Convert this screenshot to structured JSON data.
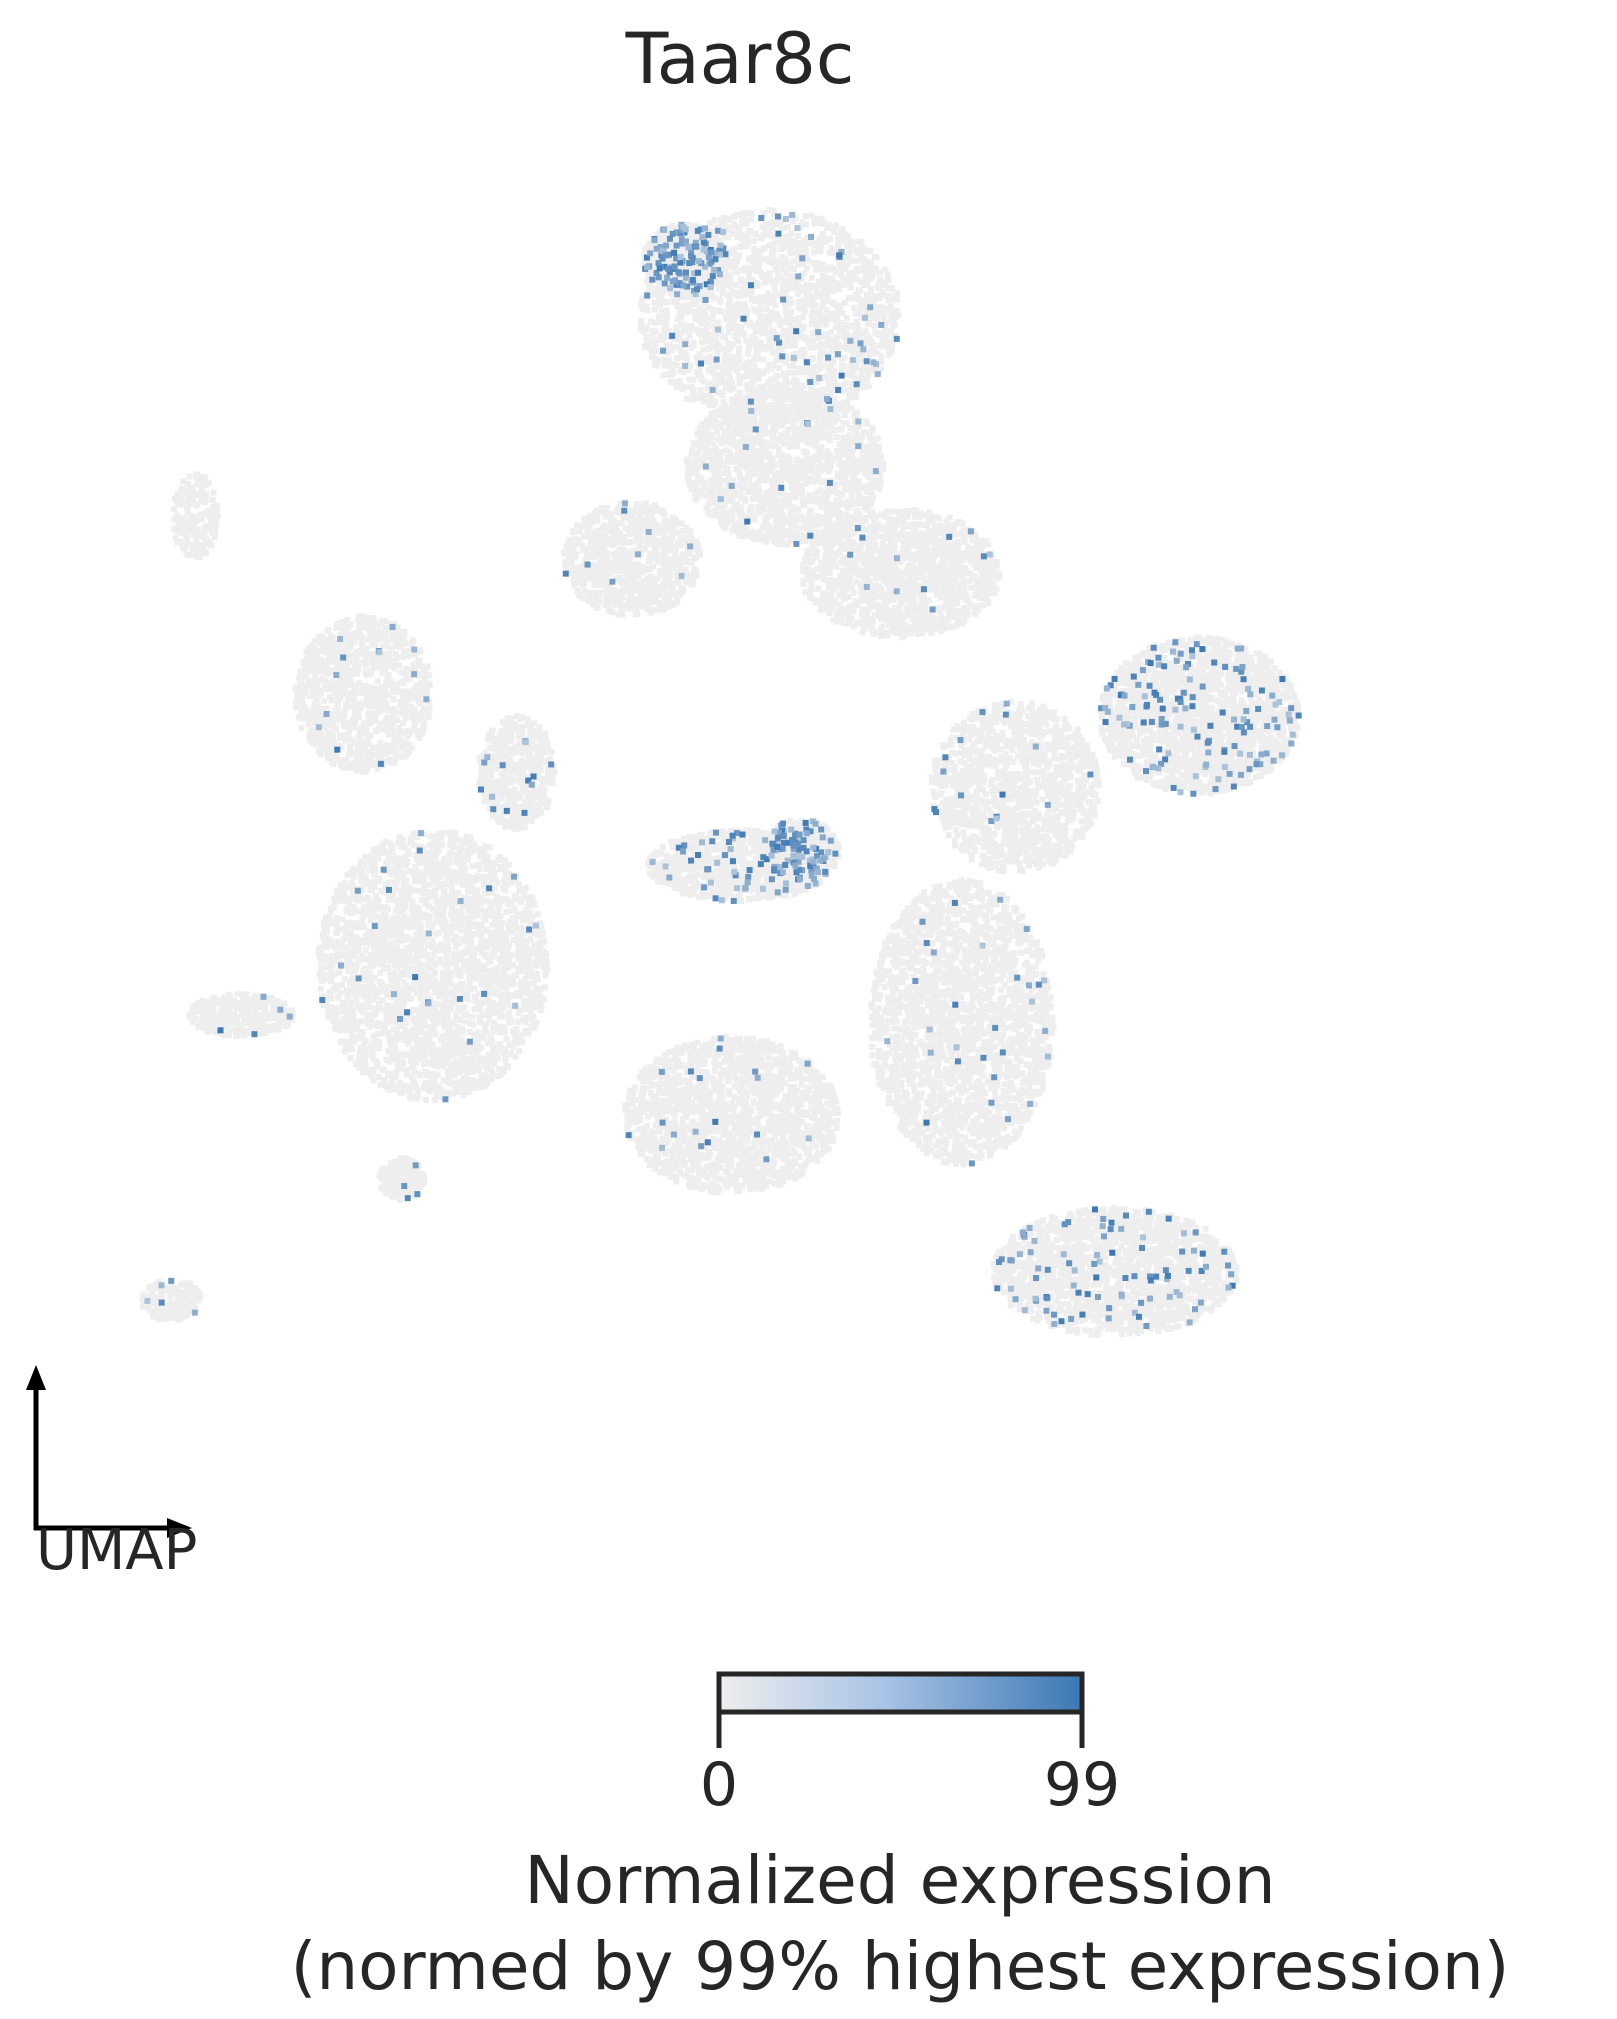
{
  "chart_data": {
    "type": "scatter",
    "title": "Taar8c",
    "embedding_label": "UMAP",
    "colorbar": {
      "min_label": "0",
      "max_label": "99",
      "label_line1": "Normalized expression",
      "label_line2": "(normed by 99% highest expression)",
      "colors": [
        "#eeeeee",
        "#a9c4e6",
        "#3c78b4"
      ]
    },
    "background_color": "#eeeeee",
    "high_color": "#3c78b4",
    "clusters": [
      {
        "name": "top",
        "cx": 0.0,
        "cy": 8.6,
        "rx": 1.7,
        "ry": 1.5,
        "n": 320,
        "expr_frac": 0.09
      },
      {
        "name": "top-hotspot",
        "cx": -1.1,
        "cy": 9.4,
        "rx": 0.55,
        "ry": 0.5,
        "n": 140,
        "expr_frac": 0.45
      },
      {
        "name": "upper-stem",
        "cx": 0.2,
        "cy": 6.5,
        "rx": 1.3,
        "ry": 1.1,
        "n": 240,
        "expr_frac": 0.03
      },
      {
        "name": "upper-right-arm",
        "cx": 1.7,
        "cy": 5.0,
        "rx": 1.3,
        "ry": 0.9,
        "n": 220,
        "expr_frac": 0.04
      },
      {
        "name": "upper-left-arm",
        "cx": -1.8,
        "cy": 5.2,
        "rx": 0.9,
        "ry": 0.8,
        "n": 130,
        "expr_frac": 0.03
      },
      {
        "name": "left-mid",
        "cx": -5.3,
        "cy": 3.3,
        "rx": 0.9,
        "ry": 1.1,
        "n": 160,
        "expr_frac": 0.03
      },
      {
        "name": "left-large",
        "cx": -4.4,
        "cy": -0.5,
        "rx": 1.5,
        "ry": 1.9,
        "n": 430,
        "expr_frac": 0.04
      },
      {
        "name": "left-connector",
        "cx": -3.3,
        "cy": 2.2,
        "rx": 0.5,
        "ry": 0.8,
        "n": 80,
        "expr_frac": 0.08
      },
      {
        "name": "left-tail",
        "cx": -6.9,
        "cy": -1.2,
        "rx": 0.7,
        "ry": 0.3,
        "n": 50,
        "expr_frac": 0.03
      },
      {
        "name": "center-small",
        "cx": -0.4,
        "cy": 0.9,
        "rx": 1.2,
        "ry": 0.5,
        "n": 150,
        "expr_frac": 0.16
      },
      {
        "name": "center-hotspot",
        "cx": 0.4,
        "cy": 1.1,
        "rx": 0.5,
        "ry": 0.45,
        "n": 80,
        "expr_frac": 0.45
      },
      {
        "name": "bottom-center",
        "cx": -0.5,
        "cy": -2.6,
        "rx": 1.4,
        "ry": 1.1,
        "n": 270,
        "expr_frac": 0.04
      },
      {
        "name": "right-lower",
        "cx": 2.5,
        "cy": -1.3,
        "rx": 1.2,
        "ry": 2.0,
        "n": 380,
        "expr_frac": 0.05
      },
      {
        "name": "right-arm",
        "cx": 3.2,
        "cy": 2.0,
        "rx": 1.1,
        "ry": 1.2,
        "n": 200,
        "expr_frac": 0.05
      },
      {
        "name": "right-cluster",
        "cx": 5.6,
        "cy": 3.0,
        "rx": 1.3,
        "ry": 1.1,
        "n": 310,
        "expr_frac": 0.18
      },
      {
        "name": "bottom-right",
        "cx": 4.5,
        "cy": -4.8,
        "rx": 1.6,
        "ry": 0.9,
        "n": 280,
        "expr_frac": 0.14
      },
      {
        "name": "far-left-small",
        "cx": -7.5,
        "cy": 5.8,
        "rx": 0.3,
        "ry": 0.6,
        "n": 30,
        "expr_frac": 0.0
      },
      {
        "name": "tiny-bottom-left",
        "cx": -4.8,
        "cy": -3.5,
        "rx": 0.3,
        "ry": 0.3,
        "n": 30,
        "expr_frac": 0.08
      },
      {
        "name": "far-bottom-left",
        "cx": -7.8,
        "cy": -5.2,
        "rx": 0.4,
        "ry": 0.3,
        "n": 25,
        "expr_frac": 0.1
      }
    ],
    "xlim": [
      -9,
      9
    ],
    "ylim": [
      -8,
      11.5
    ],
    "grid": false,
    "legend": "colorbar-bottom"
  }
}
